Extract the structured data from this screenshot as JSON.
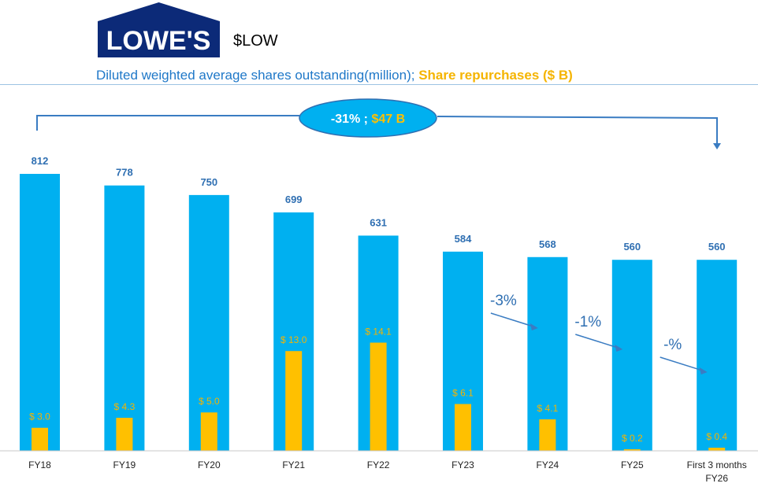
{
  "header": {
    "logo_text": "LOWE'S",
    "ticker": "$LOW",
    "subtitle_shares": "Diluted weighted average shares outstanding(million);",
    "subtitle_repurchases": "Share repurchases ($ B)"
  },
  "summary": {
    "pct": "-31% ;",
    "amount": "$47 B"
  },
  "colors": {
    "shares": "#00b0f0",
    "repurchases": "#ffc000",
    "label_blue": "#2f6fb2",
    "logo_bg": "#0c2a78"
  },
  "chart_data": {
    "type": "bar",
    "categories": [
      "FY18",
      "FY19",
      "FY20",
      "FY21",
      "FY22",
      "FY23",
      "FY24",
      "FY25",
      "First 3 months FY26"
    ],
    "category_lines": [
      [
        "FY18"
      ],
      [
        "FY19"
      ],
      [
        "FY20"
      ],
      [
        "FY21"
      ],
      [
        "FY22"
      ],
      [
        "FY23"
      ],
      [
        "FY24"
      ],
      [
        "FY25"
      ],
      [
        "First 3 months",
        "FY26"
      ]
    ],
    "series": [
      {
        "name": "Diluted weighted average shares outstanding(million)",
        "values": [
          812,
          778,
          750,
          699,
          631,
          584,
          568,
          560,
          560
        ],
        "labels": [
          "812",
          "778",
          "750",
          "699",
          "631",
          "584",
          "568",
          "560",
          "560"
        ]
      },
      {
        "name": "Share repurchases ($ B)",
        "values": [
          3.0,
          4.3,
          5.0,
          13.0,
          14.1,
          6.1,
          4.1,
          0.2,
          0.4
        ],
        "labels": [
          "$ 3.0",
          "$ 4.3",
          "$ 5.0",
          "$ 13.0",
          "$ 14.1",
          "$ 6.1",
          "$ 4.1",
          "$ 0.2",
          "$ 0.4"
        ]
      }
    ],
    "annotations": [
      {
        "text": "-3%",
        "from": "FY23",
        "to": "FY24"
      },
      {
        "text": "-1%",
        "from": "FY24",
        "to": "FY25"
      },
      {
        "text": "-%",
        "from": "FY25",
        "to": "First 3 months FY26"
      }
    ],
    "grid": false,
    "legend": "none"
  }
}
